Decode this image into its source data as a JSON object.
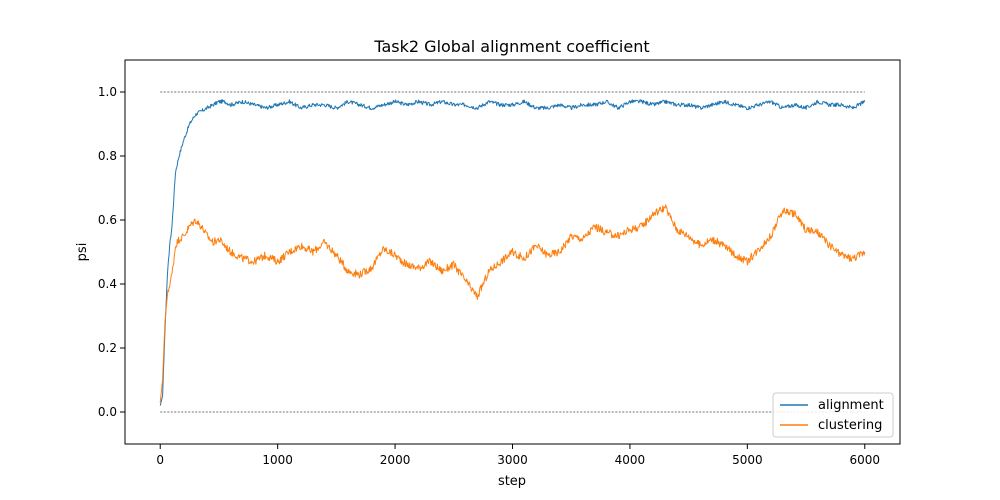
{
  "chart_data": {
    "type": "line",
    "title": "Task2 Global alignment coefficient",
    "xlabel": "step",
    "ylabel": "psi",
    "xlim": [
      -300,
      6300
    ],
    "ylim": [
      -0.1,
      1.1
    ],
    "xticks": [
      0,
      1000,
      2000,
      3000,
      4000,
      5000,
      6000
    ],
    "yticks": [
      0.0,
      0.2,
      0.4,
      0.6,
      0.8,
      1.0
    ],
    "xtick_labels": [
      "0",
      "1000",
      "2000",
      "3000",
      "4000",
      "5000",
      "6000"
    ],
    "ytick_labels": [
      "0.0",
      "0.2",
      "0.4",
      "0.6",
      "0.8",
      "1.0"
    ],
    "grid": false,
    "legend": "lower-right",
    "reference_lines": [
      {
        "y": 1.0,
        "x_range": [
          0,
          6000
        ],
        "color": "#444444",
        "style": "dotted"
      },
      {
        "y": 0.0,
        "x_range": [
          0,
          6000
        ],
        "color": "#444444",
        "style": "dotted"
      }
    ],
    "series": [
      {
        "name": "alignment",
        "color": "#1f77b4",
        "x": [
          0,
          20,
          40,
          60,
          80,
          100,
          130,
          160,
          200,
          250,
          300,
          350,
          400,
          450,
          500,
          550,
          600,
          700,
          800,
          900,
          1000,
          1100,
          1200,
          1300,
          1400,
          1500,
          1600,
          1700,
          1800,
          1900,
          2000,
          2100,
          2200,
          2300,
          2400,
          2500,
          2600,
          2700,
          2800,
          2900,
          3000,
          3100,
          3200,
          3300,
          3400,
          3500,
          3600,
          3700,
          3800,
          3900,
          4000,
          4100,
          4200,
          4300,
          4400,
          4500,
          4600,
          4700,
          4800,
          4900,
          5000,
          5100,
          5200,
          5300,
          5400,
          5500,
          5600,
          5700,
          5800,
          5900,
          6000
        ],
        "y": [
          0.02,
          0.05,
          0.25,
          0.42,
          0.52,
          0.58,
          0.75,
          0.8,
          0.85,
          0.9,
          0.93,
          0.94,
          0.95,
          0.96,
          0.97,
          0.97,
          0.96,
          0.97,
          0.96,
          0.95,
          0.96,
          0.97,
          0.95,
          0.96,
          0.96,
          0.95,
          0.97,
          0.96,
          0.95,
          0.96,
          0.97,
          0.96,
          0.97,
          0.96,
          0.97,
          0.96,
          0.96,
          0.95,
          0.97,
          0.96,
          0.96,
          0.97,
          0.95,
          0.95,
          0.96,
          0.95,
          0.96,
          0.96,
          0.97,
          0.95,
          0.97,
          0.97,
          0.96,
          0.97,
          0.96,
          0.96,
          0.95,
          0.96,
          0.97,
          0.96,
          0.95,
          0.96,
          0.97,
          0.95,
          0.96,
          0.95,
          0.97,
          0.96,
          0.96,
          0.95,
          0.97
        ]
      },
      {
        "name": "clustering",
        "color": "#ff7f0e",
        "x": [
          0,
          20,
          40,
          60,
          80,
          100,
          130,
          160,
          200,
          250,
          300,
          350,
          400,
          450,
          500,
          550,
          600,
          700,
          800,
          900,
          1000,
          1100,
          1200,
          1300,
          1400,
          1500,
          1600,
          1700,
          1800,
          1900,
          2000,
          2100,
          2200,
          2300,
          2400,
          2500,
          2600,
          2700,
          2800,
          2900,
          3000,
          3100,
          3200,
          3300,
          3400,
          3500,
          3600,
          3700,
          3800,
          3900,
          4000,
          4100,
          4200,
          4300,
          4400,
          4500,
          4600,
          4700,
          4800,
          4900,
          5000,
          5100,
          5200,
          5300,
          5400,
          5500,
          5600,
          5700,
          5800,
          5900,
          6000
        ],
        "y": [
          0.03,
          0.1,
          0.28,
          0.36,
          0.4,
          0.43,
          0.52,
          0.54,
          0.55,
          0.58,
          0.6,
          0.58,
          0.55,
          0.53,
          0.54,
          0.52,
          0.5,
          0.48,
          0.47,
          0.49,
          0.47,
          0.5,
          0.52,
          0.5,
          0.53,
          0.49,
          0.44,
          0.43,
          0.45,
          0.51,
          0.49,
          0.46,
          0.45,
          0.47,
          0.44,
          0.46,
          0.41,
          0.36,
          0.44,
          0.47,
          0.5,
          0.48,
          0.52,
          0.49,
          0.5,
          0.55,
          0.54,
          0.58,
          0.56,
          0.55,
          0.57,
          0.58,
          0.62,
          0.64,
          0.57,
          0.55,
          0.52,
          0.54,
          0.52,
          0.49,
          0.47,
          0.51,
          0.55,
          0.63,
          0.62,
          0.57,
          0.56,
          0.52,
          0.49,
          0.48,
          0.5
        ]
      }
    ]
  }
}
